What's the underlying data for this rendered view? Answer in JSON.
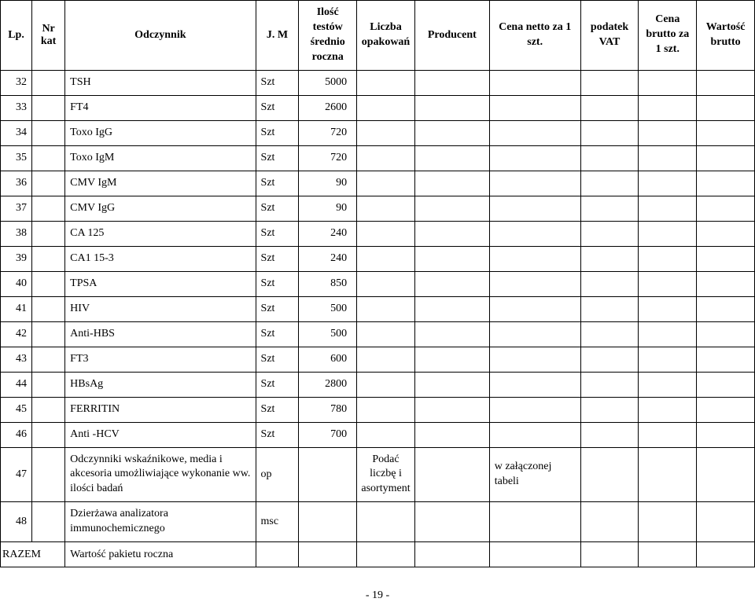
{
  "columns": {
    "lp": "Lp.",
    "nrkat": "Nr kat",
    "odczynnik": "Odczynnik",
    "jm": "J. M",
    "ilosc": "Ilość testów średnio roczna",
    "liczba": "Liczba opakowań",
    "producent": "Producent",
    "netto": "Cena netto za 1 szt.",
    "vat": "podatek VAT",
    "brutto": "Cena brutto za 1 szt.",
    "wartosc": "Wartość brutto"
  },
  "rows": [
    {
      "lp": "32",
      "label": "TSH",
      "jm": "Szt",
      "num": "5000"
    },
    {
      "lp": "33",
      "label": "FT4",
      "jm": "Szt",
      "num": "2600"
    },
    {
      "lp": "34",
      "label": "Toxo IgG",
      "jm": "Szt",
      "num": "720"
    },
    {
      "lp": "35",
      "label": "Toxo IgM",
      "jm": "Szt",
      "num": "720"
    },
    {
      "lp": "36",
      "label": "CMV IgM",
      "jm": "Szt",
      "num": "90"
    },
    {
      "lp": "37",
      "label": "CMV IgG",
      "jm": "Szt",
      "num": "90"
    },
    {
      "lp": "38",
      "label": "CA 125",
      "jm": "Szt",
      "num": "240"
    },
    {
      "lp": "39",
      "label": "CA1 15-3",
      "jm": "Szt",
      "num": "240"
    },
    {
      "lp": "40",
      "label": "TPSA",
      "jm": "Szt",
      "num": "850"
    },
    {
      "lp": "41",
      "label": "HIV",
      "jm": "Szt",
      "num": "500"
    },
    {
      "lp": "42",
      "label": "Anti-HBS",
      "jm": "Szt",
      "num": "500"
    },
    {
      "lp": "43",
      "label": "FT3",
      "jm": "Szt",
      "num": "600"
    },
    {
      "lp": "44",
      "label": "HBsAg",
      "jm": "Szt",
      "num": "2800"
    },
    {
      "lp": "45",
      "label": "FERRITIN",
      "jm": "Szt",
      "num": "780"
    },
    {
      "lp": "46",
      "label": "Anti -HCV",
      "jm": "Szt",
      "num": "700"
    }
  ],
  "row47": {
    "lp": "47",
    "label": "Odczynniki wskaźnikowe, media i akcesoria umożliwiające wykonanie ww. ilości badań",
    "jm": "op",
    "liczba": "Podać liczbę i asortyment",
    "netto": "w załączonej tabeli"
  },
  "row48": {
    "lp": "48",
    "label": "Dzierżawa analizatora immunochemicznego",
    "jm": "msc"
  },
  "sumRow": {
    "lp": "RAZEM",
    "label": "Wartość pakietu roczna"
  },
  "footer": "- 19 -",
  "style": {
    "fontFamily": "Times New Roman",
    "headerFontSize": 14,
    "cellFontSize": 14,
    "borderColor": "#000000",
    "background": "#ffffff"
  }
}
